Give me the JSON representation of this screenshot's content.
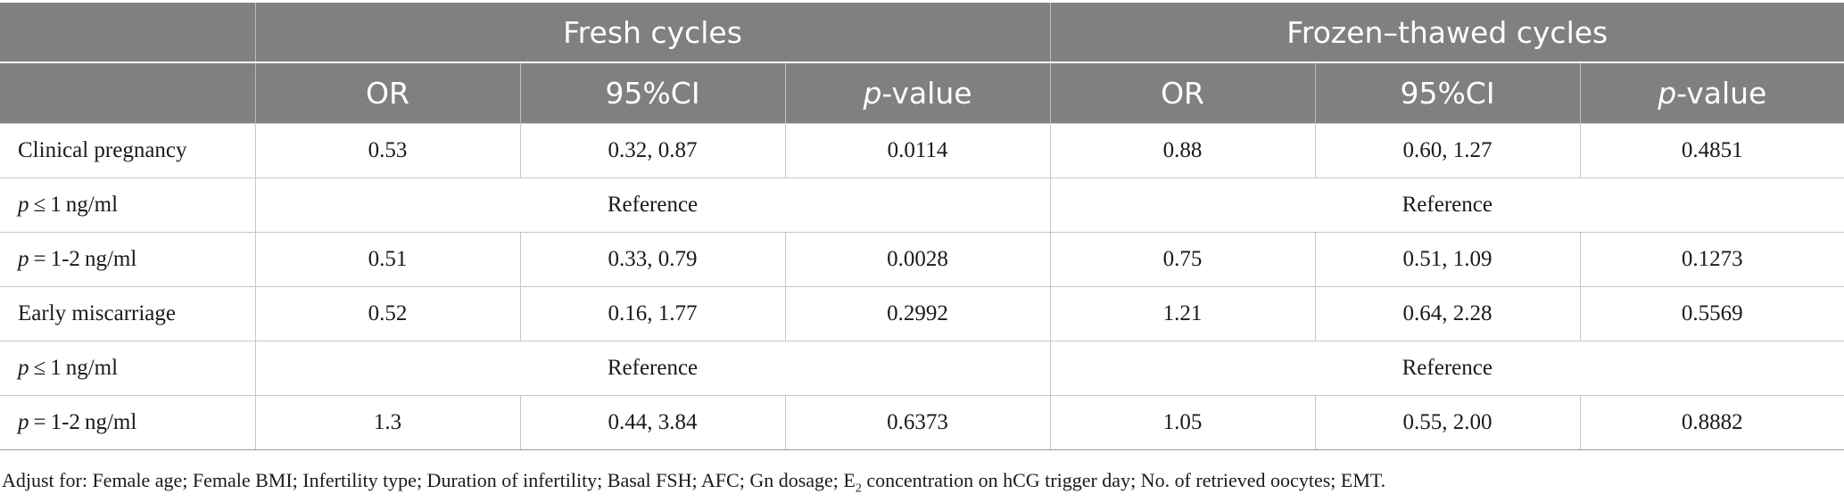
{
  "header": {
    "group_fresh": "Fresh cycles",
    "group_frozen": "Frozen–thawed cycles",
    "col_or": "OR",
    "col_ci": "95%CI",
    "col_p_italic": "p",
    "col_p_rest": "-value"
  },
  "rows": [
    {
      "label": "Clinical pregnancy",
      "f_or": "0.53",
      "f_ci": "0.32, 0.87",
      "f_p": "0.0114",
      "z_or": "0.88",
      "z_ci": "0.60, 1.27",
      "z_p": "0.4851"
    },
    {
      "label_italic": "p",
      "label_rest": " ≤ 1 ng/ml",
      "fresh_ref": "Reference",
      "frozen_ref": "Reference"
    },
    {
      "label_italic": "p",
      "label_rest": " = 1-2 ng/ml",
      "f_or": "0.51",
      "f_ci": "0.33, 0.79",
      "f_p": "0.0028",
      "z_or": "0.75",
      "z_ci": "0.51, 1.09",
      "z_p": "0.1273"
    },
    {
      "label": "Early miscarriage",
      "f_or": "0.52",
      "f_ci": "0.16, 1.77",
      "f_p": "0.2992",
      "z_or": "1.21",
      "z_ci": "0.64, 2.28",
      "z_p": "0.5569"
    },
    {
      "label_italic": "p",
      "label_rest": " ≤ 1 ng/ml",
      "fresh_ref": "Reference",
      "frozen_ref": "Reference"
    },
    {
      "label_italic": "p",
      "label_rest": " = 1-2 ng/ml",
      "f_or": "1.3",
      "f_ci": "0.44, 3.84",
      "f_p": "0.6373",
      "z_or": "1.05",
      "z_ci": "0.55, 2.00",
      "z_p": "0.8882"
    }
  ],
  "footnote": {
    "part1": "Adjust for: Female age; Female BMI; Infertility type; Duration of infertility; Basal FSH; AFC; Gn dosage; E",
    "sub": "2",
    "part2": " concentration on hCG trigger day; No. of retrieved oocytes; EMT."
  }
}
